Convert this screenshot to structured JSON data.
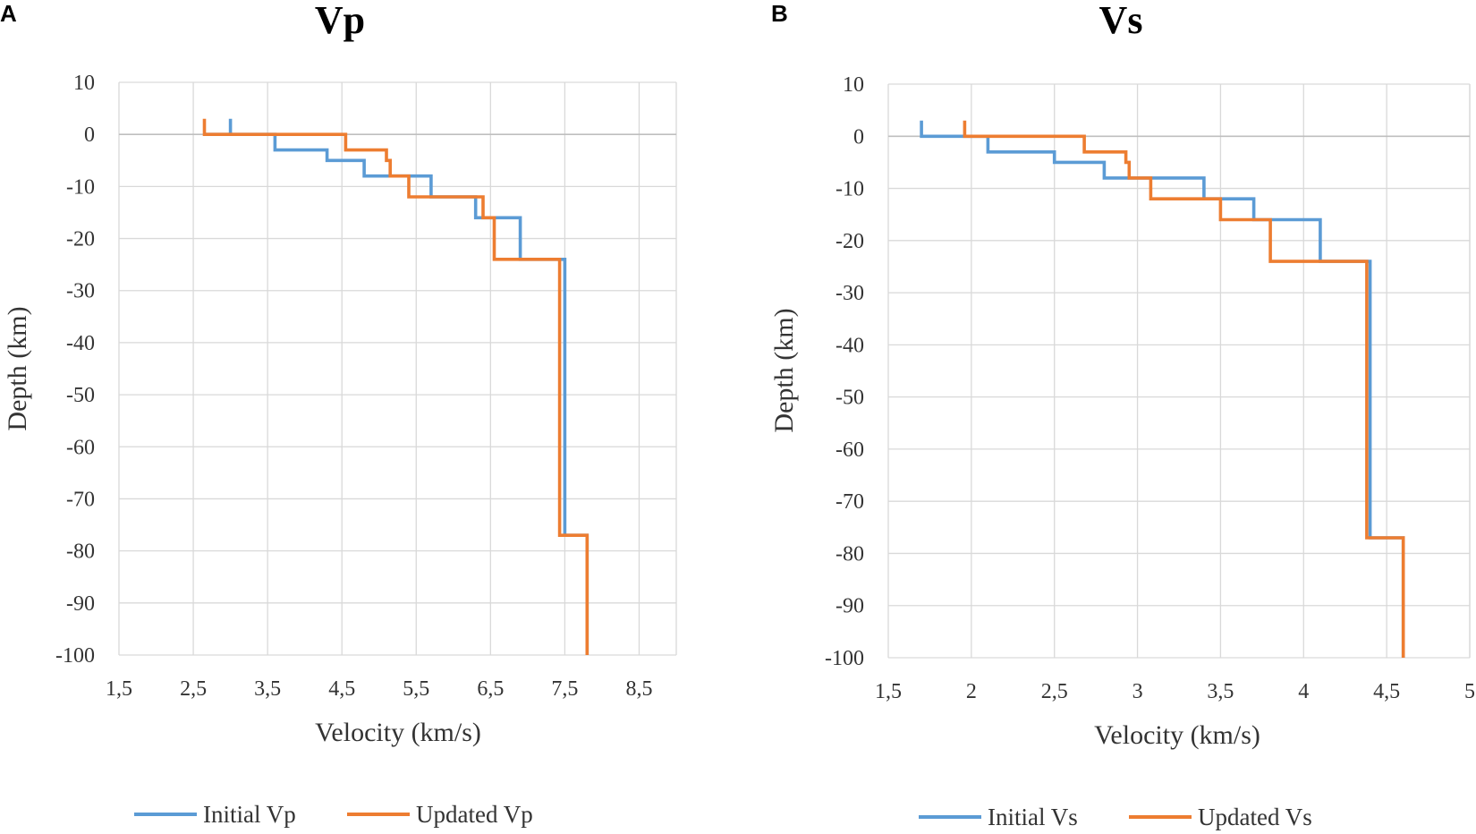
{
  "chart_data": [
    {
      "panel": "A",
      "type": "line",
      "title": "Vp",
      "xlabel": "Velocity (km/s)",
      "ylabel": "Depth (km)",
      "xlim": [
        1.5,
        9.0
      ],
      "ylim": [
        -100,
        10
      ],
      "xticks": [
        1.5,
        2.5,
        3.5,
        4.5,
        5.5,
        6.5,
        7.5,
        8.5
      ],
      "xtick_labels": [
        "1,5",
        "2,5",
        "3,5",
        "4,5",
        "5,5",
        "6,5",
        "7,5",
        "8,5"
      ],
      "yticks": [
        10,
        0,
        -10,
        -20,
        -30,
        -40,
        -50,
        -60,
        -70,
        -80,
        -90,
        -100
      ],
      "ytick_labels": [
        "10",
        "0",
        "-10",
        "-20",
        "-30",
        "-40",
        "-50",
        "-60",
        "-70",
        "-80",
        "-90",
        "-100"
      ],
      "grid": true,
      "legend_position": "bottom-center",
      "series": [
        {
          "name": "Initial Vp",
          "color": "#5b9bd5",
          "points": [
            [
              3.0,
              3
            ],
            [
              3.0,
              0
            ],
            [
              2.65,
              0
            ],
            [
              3.6,
              0
            ],
            [
              3.6,
              -3
            ],
            [
              4.3,
              -3
            ],
            [
              4.3,
              -5
            ],
            [
              4.8,
              -5
            ],
            [
              4.8,
              -8
            ],
            [
              5.7,
              -8
            ],
            [
              5.7,
              -12
            ],
            [
              6.3,
              -12
            ],
            [
              6.3,
              -16
            ],
            [
              6.9,
              -16
            ],
            [
              6.9,
              -24
            ],
            [
              7.5,
              -24
            ],
            [
              7.5,
              -77
            ],
            [
              7.8,
              -77
            ],
            [
              7.8,
              -100
            ]
          ]
        },
        {
          "name": "Updated Vp",
          "color": "#ed7d31",
          "points": [
            [
              2.65,
              3
            ],
            [
              2.65,
              0
            ],
            [
              4.55,
              0
            ],
            [
              4.55,
              -3
            ],
            [
              5.1,
              -3
            ],
            [
              5.1,
              -5
            ],
            [
              5.15,
              -5
            ],
            [
              5.15,
              -8
            ],
            [
              5.4,
              -8
            ],
            [
              5.4,
              -12
            ],
            [
              6.4,
              -12
            ],
            [
              6.4,
              -16
            ],
            [
              6.55,
              -16
            ],
            [
              6.55,
              -24
            ],
            [
              7.43,
              -24
            ],
            [
              7.43,
              -77
            ],
            [
              7.8,
              -77
            ],
            [
              7.8,
              -100
            ]
          ]
        }
      ]
    },
    {
      "panel": "B",
      "type": "line",
      "title": "Vs",
      "xlabel": "Velocity (km/s)",
      "ylabel": "Depth (km)",
      "xlim": [
        1.5,
        5.0
      ],
      "ylim": [
        -100,
        10
      ],
      "xticks": [
        1.5,
        2,
        2.5,
        3,
        3.5,
        4,
        4.5,
        5
      ],
      "xtick_labels": [
        "1,5",
        "2",
        "2,5",
        "3",
        "3,5",
        "4",
        "4,5",
        "5"
      ],
      "yticks": [
        10,
        0,
        -10,
        -20,
        -30,
        -40,
        -50,
        -60,
        -70,
        -80,
        -90,
        -100
      ],
      "ytick_labels": [
        "10",
        "0",
        "-10",
        "-20",
        "-30",
        "-40",
        "-50",
        "-60",
        "-70",
        "-80",
        "-90",
        "-100"
      ],
      "grid": true,
      "legend_position": "bottom-center",
      "series": [
        {
          "name": "Initial Vs",
          "color": "#5b9bd5",
          "points": [
            [
              1.7,
              3
            ],
            [
              1.7,
              0
            ],
            [
              2.1,
              0
            ],
            [
              2.1,
              -3
            ],
            [
              2.5,
              -3
            ],
            [
              2.5,
              -5
            ],
            [
              2.8,
              -5
            ],
            [
              2.8,
              -8
            ],
            [
              3.4,
              -8
            ],
            [
              3.4,
              -12
            ],
            [
              3.7,
              -12
            ],
            [
              3.7,
              -16
            ],
            [
              4.1,
              -16
            ],
            [
              4.1,
              -24
            ],
            [
              4.4,
              -24
            ],
            [
              4.4,
              -77
            ],
            [
              4.6,
              -77
            ],
            [
              4.6,
              -100
            ]
          ]
        },
        {
          "name": "Updated Vs",
          "color": "#ed7d31",
          "points": [
            [
              1.96,
              3
            ],
            [
              1.96,
              0
            ],
            [
              2.68,
              0
            ],
            [
              2.68,
              -3
            ],
            [
              2.93,
              -3
            ],
            [
              2.93,
              -5
            ],
            [
              2.95,
              -5
            ],
            [
              2.95,
              -8
            ],
            [
              3.08,
              -8
            ],
            [
              3.08,
              -12
            ],
            [
              3.5,
              -12
            ],
            [
              3.5,
              -16
            ],
            [
              3.8,
              -16
            ],
            [
              3.8,
              -24
            ],
            [
              4.38,
              -24
            ],
            [
              4.38,
              -77
            ],
            [
              4.6,
              -77
            ],
            [
              4.6,
              -100
            ]
          ]
        }
      ]
    }
  ]
}
